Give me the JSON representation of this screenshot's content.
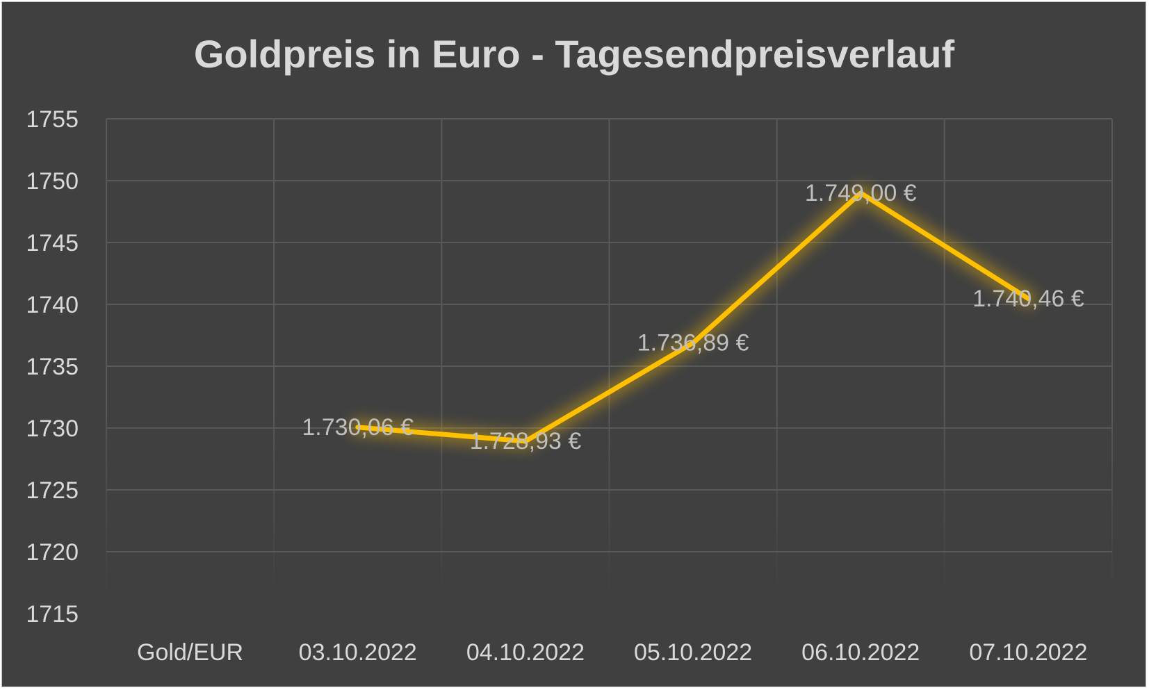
{
  "chart_data": {
    "type": "line",
    "title": "Goldpreis in Euro - Tagesendpreisverlauf",
    "xlabel": "",
    "ylabel": "",
    "categories": [
      "Gold/EUR",
      "03.10.2022",
      "04.10.2022",
      "05.10.2022",
      "06.10.2022",
      "07.10.2022"
    ],
    "series": [
      {
        "values": [
          null,
          1730.06,
          1728.93,
          1736.89,
          1749.0,
          1740.46
        ],
        "data_labels": [
          "",
          "1.730,06 €",
          "1.728,93 €",
          "1.736,89 €",
          "1.749,00 €",
          "1.740,46 €"
        ],
        "color": "#ffc000"
      }
    ],
    "ylim": [
      1715,
      1755
    ],
    "yticks": [
      1715,
      1720,
      1725,
      1730,
      1735,
      1740,
      1745,
      1750,
      1755
    ],
    "grid": true,
    "legend": "none",
    "colors": {
      "background": "#404040",
      "grid": "#595959",
      "text": "#d9d9d9",
      "line": "#ffc000"
    }
  }
}
